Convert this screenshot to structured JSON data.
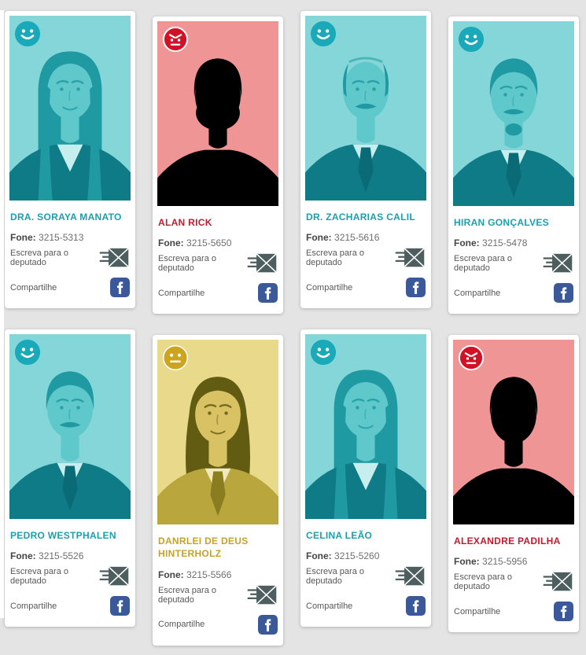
{
  "page": {
    "background": "#e4e4e4"
  },
  "labels": {
    "fone_label": "Fone:",
    "write_label": "Escreva para o deputado",
    "share_label": "Compartilhe"
  },
  "colors": {
    "mail_icon": "#4e5e5e",
    "facebook_blue": "#3b5998",
    "card_background": "#ffffff",
    "text_gray": "#585858"
  },
  "moods": {
    "happy": {
      "icon_name": "happy-face-icon",
      "badge_color": "#1aa9b8",
      "name_color": "#1b9fae",
      "palette": {
        "photo_bg": "#84d6d8",
        "face": "#5fc8cb",
        "hair": "#1f9aa3",
        "suit": "#0e7b87",
        "shirt": "#c6eeee",
        "tie": "#0a6a75"
      }
    },
    "angry": {
      "icon_name": "angry-face-icon",
      "badge_color": "#d31126",
      "name_color": "#c41a2c",
      "palette": {
        "photo_bg": "#f09595",
        "face": "#e castle"
      }
    },
    "neutral": {
      "icon_name": "neutral-face-icon",
      "badge_color": "#cda41f",
      "name_color": "#c7a228",
      "palette": {
        "photo_bg": "#e9d98b",
        "face": "#d8c264",
        "hair": "#625c12",
        "suit": "#b9a73d",
        "shirt": "#f1e8bb",
        "tie": "#8a7d1f"
      }
    }
  },
  "cards": [
    {
      "name": "DRA. SORAYA MANATO",
      "phone": "3215-5313",
      "mood": "happy",
      "portrait": {
        "hair": "long",
        "tie": false
      }
    },
    {
      "name": "ALAN RICK",
      "phone": "3215-5650",
      "mood": "angry",
      "portrait": {
        "hair": "short",
        "tie": true,
        "beard": "full",
        "mustache": true
      }
    },
    {
      "name": "DR. ZACHARIAS CALIL",
      "phone": "3215-5616",
      "mood": "happy",
      "portrait": {
        "hair": "balding",
        "tie": true,
        "mustache": true
      }
    },
    {
      "name": "HIRAN GONÇALVES",
      "phone": "3215-5478",
      "mood": "happy",
      "portrait": {
        "hair": "short",
        "tie": true,
        "mustache": true,
        "goatee": true
      }
    },
    {
      "name": "PEDRO WESTPHALEN",
      "phone": "3215-5526",
      "mood": "happy",
      "portrait": {
        "hair": "short",
        "tie": true,
        "mustache": true
      }
    },
    {
      "name": "DANRLEI DE DEUS HINTERHOLZ",
      "phone": "3215-5566",
      "mood": "neutral",
      "portrait": {
        "hair": "wavy",
        "tie": true
      }
    },
    {
      "name": "CELINA LEÃO",
      "phone": "3215-5260",
      "mood": "happy",
      "portrait": {
        "hair": "long",
        "tie": false
      }
    },
    {
      "name": "ALEXANDRE PADILHA",
      "phone": "3215-5956",
      "mood": "angry",
      "portrait": {
        "hair": "short",
        "tie": true
      }
    }
  ]
}
